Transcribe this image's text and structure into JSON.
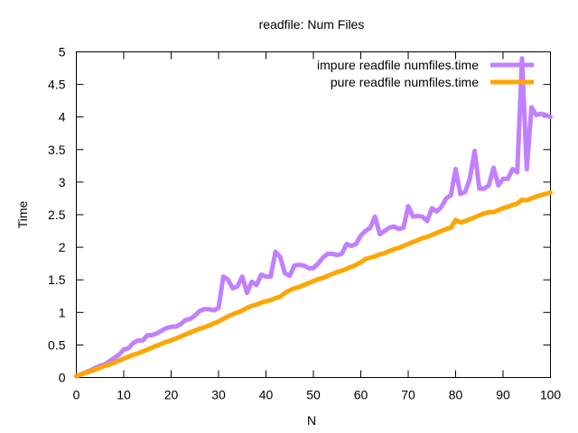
{
  "chart_data": {
    "type": "line",
    "title": "readfile: Num Files",
    "xlabel": "N",
    "ylabel": "Time",
    "xlim": [
      0,
      100
    ],
    "ylim": [
      0,
      5
    ],
    "x_ticks": [
      "0",
      "10",
      "20",
      "30",
      "40",
      "50",
      "60",
      "70",
      "80",
      "90",
      "100"
    ],
    "y_ticks": [
      "0",
      "0.5",
      "1",
      "1.5",
      "2",
      "2.5",
      "3",
      "3.5",
      "4",
      "4.5",
      "5"
    ],
    "grid": false,
    "legend_position": "top-right",
    "series": [
      {
        "name": "impure readfile numfiles.time",
        "color": "#c080ff",
        "x": [
          0,
          1,
          2,
          3,
          4,
          5,
          6,
          7,
          8,
          9,
          10,
          11,
          12,
          13,
          14,
          15,
          16,
          17,
          18,
          19,
          20,
          21,
          22,
          23,
          24,
          25,
          26,
          27,
          28,
          29,
          30,
          31,
          32,
          33,
          34,
          35,
          36,
          37,
          38,
          39,
          40,
          41,
          42,
          43,
          44,
          45,
          46,
          47,
          48,
          49,
          50,
          51,
          52,
          53,
          54,
          55,
          56,
          57,
          58,
          59,
          60,
          61,
          62,
          63,
          64,
          65,
          66,
          67,
          68,
          69,
          70,
          71,
          72,
          73,
          74,
          75,
          76,
          77,
          78,
          79,
          80,
          81,
          82,
          83,
          84,
          85,
          86,
          87,
          88,
          89,
          90,
          91,
          92,
          93,
          94,
          95,
          96,
          97,
          98,
          99,
          100
        ],
        "y": [
          0.02,
          0.05,
          0.08,
          0.11,
          0.15,
          0.18,
          0.2,
          0.25,
          0.3,
          0.35,
          0.43,
          0.45,
          0.53,
          0.57,
          0.57,
          0.65,
          0.65,
          0.68,
          0.72,
          0.76,
          0.78,
          0.78,
          0.82,
          0.88,
          0.9,
          0.95,
          1.02,
          1.05,
          1.05,
          1.03,
          1.07,
          1.55,
          1.5,
          1.37,
          1.4,
          1.55,
          1.3,
          1.47,
          1.42,
          1.58,
          1.55,
          1.55,
          1.93,
          1.85,
          1.6,
          1.56,
          1.72,
          1.73,
          1.72,
          1.68,
          1.68,
          1.75,
          1.84,
          1.9,
          1.9,
          1.88,
          1.9,
          2.05,
          2.02,
          2.05,
          2.18,
          2.25,
          2.3,
          2.47,
          2.2,
          2.25,
          2.3,
          2.32,
          2.28,
          2.3,
          2.63,
          2.47,
          2.48,
          2.47,
          2.4,
          2.6,
          2.55,
          2.62,
          2.75,
          2.8,
          3.2,
          2.82,
          2.85,
          3.05,
          3.48,
          2.9,
          2.9,
          2.95,
          3.22,
          2.95,
          3.05,
          3.05,
          3.2,
          3.15,
          4.9,
          3.2,
          4.15,
          4.03,
          4.05,
          4.03,
          4.0
        ]
      },
      {
        "name": "pure readfile numfiles.time",
        "color": "#ffa500",
        "x": [
          0,
          1,
          2,
          3,
          4,
          5,
          6,
          7,
          8,
          9,
          10,
          11,
          12,
          13,
          14,
          15,
          16,
          17,
          18,
          19,
          20,
          21,
          22,
          23,
          24,
          25,
          26,
          27,
          28,
          29,
          30,
          31,
          32,
          33,
          34,
          35,
          36,
          37,
          38,
          39,
          40,
          41,
          42,
          43,
          44,
          45,
          46,
          47,
          48,
          49,
          50,
          51,
          52,
          53,
          54,
          55,
          56,
          57,
          58,
          59,
          60,
          61,
          62,
          63,
          64,
          65,
          66,
          67,
          68,
          69,
          70,
          71,
          72,
          73,
          74,
          75,
          76,
          77,
          78,
          79,
          80,
          81,
          82,
          83,
          84,
          85,
          86,
          87,
          88,
          89,
          90,
          91,
          92,
          93,
          94,
          95,
          96,
          97,
          98,
          99,
          100
        ],
        "y": [
          0.02,
          0.05,
          0.07,
          0.1,
          0.12,
          0.15,
          0.18,
          0.2,
          0.23,
          0.26,
          0.29,
          0.32,
          0.35,
          0.37,
          0.4,
          0.43,
          0.46,
          0.49,
          0.52,
          0.55,
          0.57,
          0.6,
          0.63,
          0.66,
          0.69,
          0.72,
          0.75,
          0.77,
          0.8,
          0.83,
          0.86,
          0.9,
          0.94,
          0.97,
          1.0,
          1.03,
          1.07,
          1.1,
          1.12,
          1.15,
          1.17,
          1.19,
          1.22,
          1.24,
          1.3,
          1.34,
          1.37,
          1.39,
          1.42,
          1.45,
          1.48,
          1.51,
          1.53,
          1.56,
          1.59,
          1.62,
          1.64,
          1.67,
          1.7,
          1.73,
          1.77,
          1.82,
          1.84,
          1.86,
          1.89,
          1.91,
          1.94,
          1.97,
          1.99,
          2.02,
          2.05,
          2.08,
          2.11,
          2.14,
          2.16,
          2.19,
          2.22,
          2.25,
          2.28,
          2.3,
          2.42,
          2.38,
          2.4,
          2.43,
          2.46,
          2.49,
          2.52,
          2.54,
          2.54,
          2.57,
          2.6,
          2.62,
          2.65,
          2.67,
          2.73,
          2.72,
          2.75,
          2.78,
          2.8,
          2.82,
          2.84
        ]
      }
    ]
  }
}
